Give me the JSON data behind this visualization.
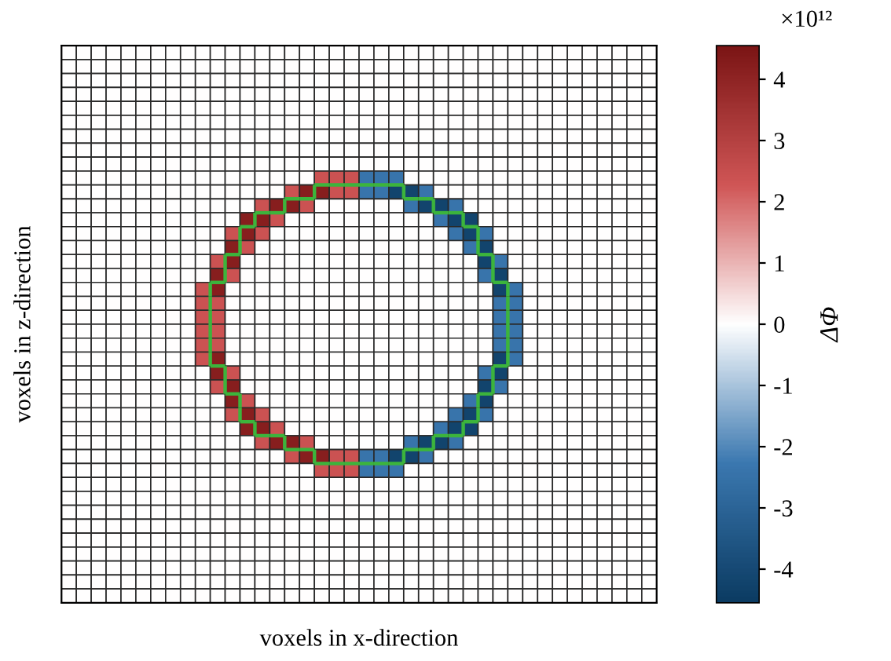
{
  "chart_data": {
    "type": "heatmap",
    "xlabel": "voxels in x-direction",
    "ylabel": "voxels in z-direction",
    "clabel": "ΔΦ",
    "annotations": [
      "×10¹²"
    ],
    "clim": [
      -4.55,
      4.55
    ],
    "cticks": [
      -4,
      -3,
      -2,
      -1,
      0,
      1,
      2,
      3,
      4
    ],
    "categories": [
      null,
      null,
      null,
      null,
      null,
      null,
      null,
      null,
      null,
      null,
      null,
      null,
      null,
      null,
      null,
      null,
      null,
      null,
      null,
      null,
      null,
      null,
      null,
      null,
      null,
      null,
      null,
      null,
      null,
      null,
      null,
      null,
      null,
      null,
      null,
      null,
      null,
      null,
      null,
      null
    ],
    "y_categories": [
      null,
      null,
      null,
      null,
      null,
      null,
      null,
      null,
      null,
      null,
      null,
      null,
      null,
      null,
      null,
      null,
      null,
      null,
      null,
      null,
      null,
      null,
      null,
      null,
      null,
      null,
      null,
      null,
      null,
      null,
      null,
      null,
      null,
      null,
      null,
      null,
      null,
      null,
      null,
      null
    ],
    "cells": [
      [
        0,
        0,
        0,
        0,
        0,
        0,
        0,
        0,
        0,
        0,
        0,
        0,
        0,
        0,
        0,
        0,
        0,
        0,
        0,
        0,
        0,
        0,
        0,
        0,
        0,
        0,
        0,
        0,
        0,
        0,
        0,
        0,
        0,
        0,
        0,
        0,
        0,
        0,
        0,
        0
      ],
      [
        0,
        0,
        0,
        0,
        0,
        0,
        0,
        0,
        0,
        0,
        0,
        0,
        0,
        0,
        0,
        0,
        0,
        0,
        0,
        0,
        0,
        0,
        0,
        0,
        0,
        0,
        0,
        0,
        0,
        0,
        0,
        0,
        0,
        0,
        0,
        0,
        0,
        0,
        0,
        0
      ],
      [
        0,
        0,
        0,
        0,
        0,
        0,
        0,
        0,
        0,
        0,
        0,
        0,
        0,
        0,
        0,
        0,
        0,
        0,
        0,
        0,
        0,
        0,
        0,
        0,
        0,
        0,
        0,
        0,
        0,
        0,
        0,
        0,
        0,
        0,
        0,
        0,
        0,
        0,
        0,
        0
      ],
      [
        0,
        0,
        0,
        0,
        0,
        0,
        0,
        0,
        0,
        0,
        0,
        0,
        0,
        0,
        0,
        0,
        0,
        0,
        0,
        0,
        0,
        0,
        0,
        0,
        0,
        0,
        0,
        0,
        0,
        0,
        0,
        0,
        0,
        0,
        0,
        0,
        0,
        0,
        0,
        0
      ],
      [
        0,
        0,
        0,
        0,
        0,
        0,
        0,
        0,
        0,
        0,
        0,
        0,
        0,
        0,
        0,
        0,
        0,
        0,
        0,
        0,
        0,
        0,
        0,
        0,
        0,
        0,
        0,
        0,
        0,
        0,
        0,
        0,
        0,
        0,
        0,
        0,
        0,
        0,
        0,
        0
      ],
      [
        0,
        0,
        0,
        0,
        0,
        0,
        0,
        0,
        0,
        0,
        0,
        0,
        0,
        0,
        0,
        0,
        0,
        0,
        0,
        0,
        0,
        0,
        0,
        0,
        0,
        0,
        0,
        0,
        0,
        0,
        0,
        0,
        0,
        0,
        0,
        0,
        0,
        0,
        0,
        0
      ],
      [
        0,
        0,
        0,
        0,
        0,
        0,
        0,
        0,
        0,
        0,
        0,
        0,
        0,
        0,
        0,
        0,
        0,
        0,
        0,
        0,
        0,
        0,
        0,
        0,
        0,
        0,
        0,
        0,
        0,
        0,
        0,
        0,
        0,
        0,
        0,
        0,
        0,
        0,
        0,
        0
      ],
      [
        0,
        0,
        0,
        0,
        0,
        0,
        0,
        0,
        0,
        0,
        0,
        0,
        0,
        0,
        0,
        0,
        0,
        0,
        0,
        0,
        0,
        0,
        0,
        0,
        0,
        0,
        0,
        0,
        0,
        0,
        0,
        0,
        0,
        0,
        0,
        0,
        0,
        0,
        0,
        0
      ],
      [
        0,
        0,
        0,
        0,
        0,
        0,
        0,
        0,
        0,
        0,
        0,
        0,
        0,
        0,
        0,
        0,
        0,
        0,
        0,
        0,
        0,
        0,
        0,
        0,
        0,
        0,
        0,
        0,
        0,
        0,
        0,
        0,
        0,
        0,
        0,
        0,
        0,
        0,
        0,
        0
      ],
      [
        0,
        0,
        0,
        0,
        0,
        0,
        0,
        0,
        0,
        0,
        0,
        0,
        0,
        0,
        0,
        0,
        0,
        2.4,
        2.4,
        2.4,
        -2.4,
        -2.4,
        -2.4,
        0,
        0,
        0,
        0,
        0,
        0,
        0,
        0,
        0,
        0,
        0,
        0,
        0,
        0,
        0,
        0,
        0
      ],
      [
        0,
        0,
        0,
        0,
        0,
        0,
        0,
        0,
        0,
        0,
        0,
        0,
        0,
        0,
        0,
        2.4,
        4.2,
        4.2,
        2.4,
        2.4,
        -2.4,
        -2.4,
        -4.2,
        -4.2,
        -2.4,
        0,
        0,
        0,
        0,
        0,
        0,
        0,
        0,
        0,
        0,
        0,
        0,
        0,
        0,
        0
      ],
      [
        0,
        0,
        0,
        0,
        0,
        0,
        0,
        0,
        0,
        0,
        0,
        0,
        0,
        2.4,
        4.2,
        4.2,
        2.4,
        0,
        0,
        0,
        0,
        0,
        0,
        -2.4,
        -4.2,
        -4.2,
        -2.4,
        0,
        0,
        0,
        0,
        0,
        0,
        0,
        0,
        0,
        0,
        0,
        0,
        0
      ],
      [
        0,
        0,
        0,
        0,
        0,
        0,
        0,
        0,
        0,
        0,
        0,
        0,
        4.2,
        4.2,
        2.4,
        0,
        0,
        0,
        0,
        0,
        0,
        0,
        0,
        0,
        0,
        -2.4,
        -4.2,
        -4.2,
        0,
        0,
        0,
        0,
        0,
        0,
        0,
        0,
        0,
        0,
        0,
        0
      ],
      [
        0,
        0,
        0,
        0,
        0,
        0,
        0,
        0,
        0,
        0,
        0,
        2.4,
        4.2,
        2.4,
        0,
        0,
        0,
        0,
        0,
        0,
        0,
        0,
        0,
        0,
        0,
        0,
        -2.4,
        -4.2,
        -2.4,
        0,
        0,
        0,
        0,
        0,
        0,
        0,
        0,
        0,
        0,
        0
      ],
      [
        0,
        0,
        0,
        0,
        0,
        0,
        0,
        0,
        0,
        0,
        0,
        4.2,
        2.4,
        0,
        0,
        0,
        0,
        0,
        0,
        0,
        0,
        0,
        0,
        0,
        0,
        0,
        0,
        -2.4,
        -4.2,
        0,
        0,
        0,
        0,
        0,
        0,
        0,
        0,
        0,
        0,
        0
      ],
      [
        0,
        0,
        0,
        0,
        0,
        0,
        0,
        0,
        0,
        0,
        2.4,
        4.2,
        0,
        0,
        0,
        0,
        0,
        0,
        0,
        0,
        0,
        0,
        0,
        0,
        0,
        0,
        0,
        0,
        -4.2,
        -2.4,
        0,
        0,
        0,
        0,
        0,
        0,
        0,
        0,
        0,
        0
      ],
      [
        0,
        0,
        0,
        0,
        0,
        0,
        0,
        0,
        0,
        0,
        4.2,
        2.4,
        0,
        0,
        0,
        0,
        0,
        0,
        0,
        0,
        0,
        0,
        0,
        0,
        0,
        0,
        0,
        0,
        -2.4,
        -4.2,
        0,
        0,
        0,
        0,
        0,
        0,
        0,
        0,
        0,
        0
      ],
      [
        0,
        0,
        0,
        0,
        0,
        0,
        0,
        0,
        0,
        2.4,
        4.2,
        0,
        0,
        0,
        0,
        0,
        0,
        0,
        0,
        0,
        0,
        0,
        0,
        0,
        0,
        0,
        0,
        0,
        0,
        -4.2,
        -2.4,
        0,
        0,
        0,
        0,
        0,
        0,
        0,
        0,
        0
      ],
      [
        0,
        0,
        0,
        0,
        0,
        0,
        0,
        0,
        0,
        2.4,
        2.4,
        0,
        0,
        0,
        0,
        0,
        0,
        0,
        0,
        0,
        0,
        0,
        0,
        0,
        0,
        0,
        0,
        0,
        0,
        -2.4,
        -2.4,
        0,
        0,
        0,
        0,
        0,
        0,
        0,
        0,
        0
      ],
      [
        0,
        0,
        0,
        0,
        0,
        0,
        0,
        0,
        0,
        2.4,
        2.4,
        0,
        0,
        0,
        0,
        0,
        0,
        0,
        0,
        0,
        0,
        0,
        0,
        0,
        0,
        0,
        0,
        0,
        0,
        -2.4,
        -2.4,
        0,
        0,
        0,
        0,
        0,
        0,
        0,
        0,
        0
      ],
      [
        0,
        0,
        0,
        0,
        0,
        0,
        0,
        0,
        0,
        2.4,
        2.4,
        0,
        0,
        0,
        0,
        0,
        0,
        0,
        0,
        0,
        0,
        0,
        0,
        0,
        0,
        0,
        0,
        0,
        0,
        -2.4,
        -2.4,
        0,
        0,
        0,
        0,
        0,
        0,
        0,
        0,
        0
      ],
      [
        0,
        0,
        0,
        0,
        0,
        0,
        0,
        0,
        0,
        2.4,
        2.4,
        0,
        0,
        0,
        0,
        0,
        0,
        0,
        0,
        0,
        0,
        0,
        0,
        0,
        0,
        0,
        0,
        0,
        0,
        -2.4,
        -2.4,
        0,
        0,
        0,
        0,
        0,
        0,
        0,
        0,
        0
      ],
      [
        0,
        0,
        0,
        0,
        0,
        0,
        0,
        0,
        0,
        2.4,
        4.2,
        0,
        0,
        0,
        0,
        0,
        0,
        0,
        0,
        0,
        0,
        0,
        0,
        0,
        0,
        0,
        0,
        0,
        0,
        -4.2,
        -2.4,
        0,
        0,
        0,
        0,
        0,
        0,
        0,
        0,
        0
      ],
      [
        0,
        0,
        0,
        0,
        0,
        0,
        0,
        0,
        0,
        0,
        4.2,
        2.4,
        0,
        0,
        0,
        0,
        0,
        0,
        0,
        0,
        0,
        0,
        0,
        0,
        0,
        0,
        0,
        0,
        -2.4,
        -4.2,
        0,
        0,
        0,
        0,
        0,
        0,
        0,
        0,
        0,
        0
      ],
      [
        0,
        0,
        0,
        0,
        0,
        0,
        0,
        0,
        0,
        0,
        2.4,
        4.2,
        0,
        0,
        0,
        0,
        0,
        0,
        0,
        0,
        0,
        0,
        0,
        0,
        0,
        0,
        0,
        0,
        -4.2,
        -2.4,
        0,
        0,
        0,
        0,
        0,
        0,
        0,
        0,
        0,
        0
      ],
      [
        0,
        0,
        0,
        0,
        0,
        0,
        0,
        0,
        0,
        0,
        0,
        4.2,
        2.4,
        0,
        0,
        0,
        0,
        0,
        0,
        0,
        0,
        0,
        0,
        0,
        0,
        0,
        0,
        -2.4,
        -4.2,
        0,
        0,
        0,
        0,
        0,
        0,
        0,
        0,
        0,
        0,
        0
      ],
      [
        0,
        0,
        0,
        0,
        0,
        0,
        0,
        0,
        0,
        0,
        0,
        2.4,
        4.2,
        2.4,
        0,
        0,
        0,
        0,
        0,
        0,
        0,
        0,
        0,
        0,
        0,
        0,
        -2.4,
        -4.2,
        -2.4,
        0,
        0,
        0,
        0,
        0,
        0,
        0,
        0,
        0,
        0,
        0
      ],
      [
        0,
        0,
        0,
        0,
        0,
        0,
        0,
        0,
        0,
        0,
        0,
        0,
        4.2,
        4.2,
        2.4,
        0,
        0,
        0,
        0,
        0,
        0,
        0,
        0,
        0,
        0,
        -2.4,
        -4.2,
        -4.2,
        0,
        0,
        0,
        0,
        0,
        0,
        0,
        0,
        0,
        0,
        0,
        0
      ],
      [
        0,
        0,
        0,
        0,
        0,
        0,
        0,
        0,
        0,
        0,
        0,
        0,
        0,
        2.4,
        4.2,
        4.2,
        2.4,
        0,
        0,
        0,
        0,
        0,
        0,
        -2.4,
        -4.2,
        -4.2,
        -2.4,
        0,
        0,
        0,
        0,
        0,
        0,
        0,
        0,
        0,
        0,
        0,
        0,
        0
      ],
      [
        0,
        0,
        0,
        0,
        0,
        0,
        0,
        0,
        0,
        0,
        0,
        0,
        0,
        0,
        0,
        2.4,
        4.2,
        4.2,
        2.4,
        2.4,
        -2.4,
        -2.4,
        -4.2,
        -4.2,
        -2.4,
        0,
        0,
        0,
        0,
        0,
        0,
        0,
        0,
        0,
        0,
        0,
        0,
        0,
        0,
        0
      ],
      [
        0,
        0,
        0,
        0,
        0,
        0,
        0,
        0,
        0,
        0,
        0,
        0,
        0,
        0,
        0,
        0,
        0,
        2.4,
        2.4,
        2.4,
        -2.4,
        -2.4,
        -2.4,
        0,
        0,
        0,
        0,
        0,
        0,
        0,
        0,
        0,
        0,
        0,
        0,
        0,
        0,
        0,
        0,
        0
      ],
      [
        0,
        0,
        0,
        0,
        0,
        0,
        0,
        0,
        0,
        0,
        0,
        0,
        0,
        0,
        0,
        0,
        0,
        0,
        0,
        0,
        0,
        0,
        0,
        0,
        0,
        0,
        0,
        0,
        0,
        0,
        0,
        0,
        0,
        0,
        0,
        0,
        0,
        0,
        0,
        0
      ],
      [
        0,
        0,
        0,
        0,
        0,
        0,
        0,
        0,
        0,
        0,
        0,
        0,
        0,
        0,
        0,
        0,
        0,
        0,
        0,
        0,
        0,
        0,
        0,
        0,
        0,
        0,
        0,
        0,
        0,
        0,
        0,
        0,
        0,
        0,
        0,
        0,
        0,
        0,
        0,
        0
      ],
      [
        0,
        0,
        0,
        0,
        0,
        0,
        0,
        0,
        0,
        0,
        0,
        0,
        0,
        0,
        0,
        0,
        0,
        0,
        0,
        0,
        0,
        0,
        0,
        0,
        0,
        0,
        0,
        0,
        0,
        0,
        0,
        0,
        0,
        0,
        0,
        0,
        0,
        0,
        0,
        0
      ],
      [
        0,
        0,
        0,
        0,
        0,
        0,
        0,
        0,
        0,
        0,
        0,
        0,
        0,
        0,
        0,
        0,
        0,
        0,
        0,
        0,
        0,
        0,
        0,
        0,
        0,
        0,
        0,
        0,
        0,
        0,
        0,
        0,
        0,
        0,
        0,
        0,
        0,
        0,
        0,
        0
      ],
      [
        0,
        0,
        0,
        0,
        0,
        0,
        0,
        0,
        0,
        0,
        0,
        0,
        0,
        0,
        0,
        0,
        0,
        0,
        0,
        0,
        0,
        0,
        0,
        0,
        0,
        0,
        0,
        0,
        0,
        0,
        0,
        0,
        0,
        0,
        0,
        0,
        0,
        0,
        0,
        0
      ],
      [
        0,
        0,
        0,
        0,
        0,
        0,
        0,
        0,
        0,
        0,
        0,
        0,
        0,
        0,
        0,
        0,
        0,
        0,
        0,
        0,
        0,
        0,
        0,
        0,
        0,
        0,
        0,
        0,
        0,
        0,
        0,
        0,
        0,
        0,
        0,
        0,
        0,
        0,
        0,
        0
      ],
      [
        0,
        0,
        0,
        0,
        0,
        0,
        0,
        0,
        0,
        0,
        0,
        0,
        0,
        0,
        0,
        0,
        0,
        0,
        0,
        0,
        0,
        0,
        0,
        0,
        0,
        0,
        0,
        0,
        0,
        0,
        0,
        0,
        0,
        0,
        0,
        0,
        0,
        0,
        0,
        0
      ],
      [
        0,
        0,
        0,
        0,
        0,
        0,
        0,
        0,
        0,
        0,
        0,
        0,
        0,
        0,
        0,
        0,
        0,
        0,
        0,
        0,
        0,
        0,
        0,
        0,
        0,
        0,
        0,
        0,
        0,
        0,
        0,
        0,
        0,
        0,
        0,
        0,
        0,
        0,
        0,
        0
      ],
      [
        0,
        0,
        0,
        0,
        0,
        0,
        0,
        0,
        0,
        0,
        0,
        0,
        0,
        0,
        0,
        0,
        0,
        0,
        0,
        0,
        0,
        0,
        0,
        0,
        0,
        0,
        0,
        0,
        0,
        0,
        0,
        0,
        0,
        0,
        0,
        0,
        0,
        0,
        0,
        0
      ]
    ]
  }
}
